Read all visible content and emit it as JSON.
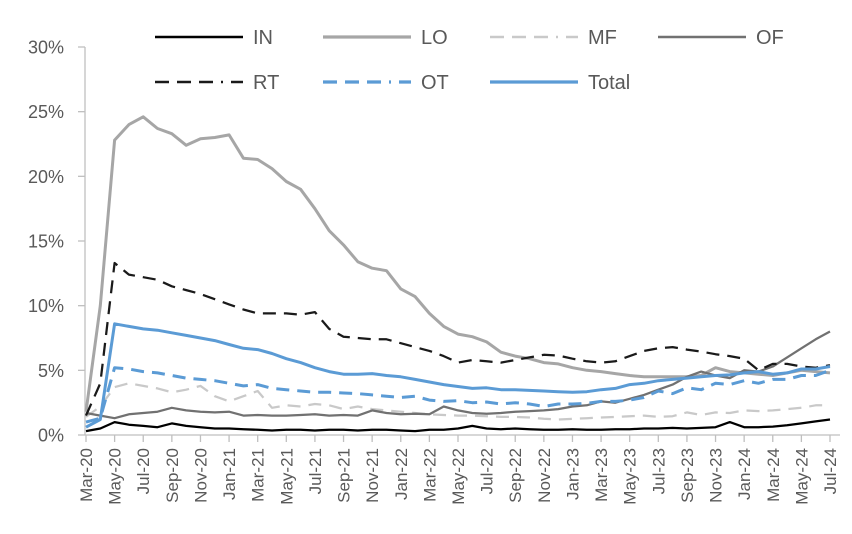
{
  "chart_data": {
    "type": "line",
    "title": "",
    "xlabel": "",
    "ylabel": "",
    "ylim": [
      0,
      30
    ],
    "ytick_step": 5,
    "ytick_labels": [
      "0%",
      "5%",
      "10%",
      "15%",
      "20%",
      "25%",
      "30%"
    ],
    "xtick_every": 2,
    "xtick_labels": [
      "Mar-20",
      "May-20",
      "Jul-20",
      "Sep-20",
      "Nov-20",
      "Jan-21",
      "Mar-21",
      "May-21",
      "Jul-21",
      "Sep-21",
      "Nov-21",
      "Jan-22",
      "Mar-22",
      "May-22",
      "Jul-22",
      "Sep-22",
      "Nov-22",
      "Jan-23",
      "Mar-23",
      "May-23",
      "Jul-23",
      "Sep-23",
      "Nov-23",
      "Jan-24",
      "Mar-24",
      "May-24",
      "Jul-24"
    ],
    "grid": false,
    "legend_position": "top",
    "legend_rows": [
      [
        "IN",
        "LO",
        "MF",
        "OF"
      ],
      [
        "RT",
        "OT",
        "Total"
      ]
    ],
    "axis_color": "#bfbfbf",
    "label_color": "#595959",
    "categories": [
      "Mar-20",
      "Apr-20",
      "May-20",
      "Jun-20",
      "Jul-20",
      "Aug-20",
      "Sep-20",
      "Oct-20",
      "Nov-20",
      "Dec-20",
      "Jan-21",
      "Feb-21",
      "Mar-21",
      "Apr-21",
      "May-21",
      "Jun-21",
      "Jul-21",
      "Aug-21",
      "Sep-21",
      "Oct-21",
      "Nov-21",
      "Dec-21",
      "Jan-22",
      "Feb-22",
      "Mar-22",
      "Apr-22",
      "May-22",
      "Jun-22",
      "Jul-22",
      "Aug-22",
      "Sep-22",
      "Oct-22",
      "Nov-22",
      "Dec-22",
      "Jan-23",
      "Feb-23",
      "Mar-23",
      "Apr-23",
      "May-23",
      "Jun-23",
      "Jul-23",
      "Aug-23",
      "Sep-23",
      "Oct-23",
      "Nov-23",
      "Dec-23",
      "Jan-24",
      "Feb-24",
      "Mar-24",
      "Apr-24",
      "May-24",
      "Jun-24",
      "Jul-24"
    ],
    "series": [
      {
        "name": "IN",
        "color": "#000000",
        "dash": false,
        "width": 2.25,
        "values": [
          0.3,
          0.5,
          1.0,
          0.8,
          0.7,
          0.6,
          0.9,
          0.7,
          0.6,
          0.5,
          0.5,
          0.45,
          0.4,
          0.35,
          0.4,
          0.4,
          0.35,
          0.4,
          0.4,
          0.35,
          0.4,
          0.4,
          0.35,
          0.3,
          0.4,
          0.4,
          0.5,
          0.7,
          0.5,
          0.45,
          0.5,
          0.45,
          0.4,
          0.4,
          0.45,
          0.4,
          0.4,
          0.45,
          0.45,
          0.5,
          0.5,
          0.55,
          0.5,
          0.55,
          0.6,
          1.0,
          0.6,
          0.6,
          0.65,
          0.75,
          0.9,
          1.05,
          1.2
        ]
      },
      {
        "name": "LO",
        "color": "#a6a6a6",
        "dash": false,
        "width": 3,
        "values": [
          1.8,
          10.0,
          22.8,
          24.0,
          24.6,
          23.7,
          23.3,
          22.4,
          22.9,
          23.0,
          23.2,
          21.4,
          21.3,
          20.6,
          19.6,
          19.0,
          17.5,
          15.8,
          14.7,
          13.4,
          12.9,
          12.7,
          11.3,
          10.7,
          9.4,
          8.4,
          7.8,
          7.6,
          7.2,
          6.4,
          6.1,
          5.9,
          5.6,
          5.5,
          5.2,
          5.0,
          4.9,
          4.75,
          4.6,
          4.5,
          4.5,
          4.5,
          4.5,
          4.6,
          5.2,
          4.9,
          4.8,
          4.7,
          4.6,
          4.8,
          5.0,
          4.9,
          4.8
        ]
      },
      {
        "name": "MF",
        "color": "#c9c9c9",
        "dash": true,
        "width": 2.25,
        "values": [
          1.4,
          2.2,
          3.7,
          4.0,
          3.8,
          3.6,
          3.3,
          3.5,
          3.8,
          3.0,
          2.6,
          3.0,
          3.4,
          2.1,
          2.3,
          2.2,
          2.4,
          2.3,
          2.0,
          2.2,
          2.0,
          1.9,
          1.8,
          1.7,
          1.6,
          1.55,
          1.5,
          1.5,
          1.45,
          1.4,
          1.4,
          1.35,
          1.25,
          1.2,
          1.25,
          1.3,
          1.35,
          1.4,
          1.45,
          1.5,
          1.4,
          1.45,
          1.75,
          1.55,
          1.75,
          1.7,
          1.9,
          1.85,
          1.9,
          2.0,
          2.1,
          2.3,
          2.3
        ]
      },
      {
        "name": "OF",
        "color": "#717171",
        "dash": false,
        "width": 2.25,
        "values": [
          1.7,
          1.5,
          1.3,
          1.6,
          1.7,
          1.8,
          2.1,
          1.9,
          1.8,
          1.75,
          1.8,
          1.5,
          1.55,
          1.5,
          1.5,
          1.55,
          1.6,
          1.5,
          1.55,
          1.5,
          1.9,
          1.7,
          1.6,
          1.65,
          1.6,
          2.2,
          1.9,
          1.7,
          1.65,
          1.7,
          1.8,
          1.85,
          1.9,
          2.0,
          2.2,
          2.3,
          2.6,
          2.5,
          2.8,
          3.1,
          3.5,
          3.9,
          4.5,
          4.9,
          4.6,
          4.4,
          5.0,
          4.9,
          5.3,
          6.0,
          6.7,
          7.4,
          8.0
        ]
      },
      {
        "name": "RT",
        "color": "#1a1a1a",
        "dash": true,
        "width": 2.25,
        "values": [
          1.5,
          4.0,
          13.3,
          12.4,
          12.2,
          12.0,
          11.5,
          11.2,
          10.9,
          10.5,
          10.1,
          9.7,
          9.4,
          9.4,
          9.4,
          9.3,
          9.5,
          8.2,
          7.6,
          7.5,
          7.4,
          7.4,
          7.1,
          6.8,
          6.5,
          6.1,
          5.6,
          5.8,
          5.7,
          5.6,
          5.8,
          6.0,
          6.2,
          6.15,
          5.9,
          5.7,
          5.6,
          5.7,
          6.1,
          6.5,
          6.7,
          6.8,
          6.6,
          6.45,
          6.25,
          6.1,
          5.9,
          5.0,
          5.5,
          5.5,
          5.3,
          5.2,
          5.4
        ]
      },
      {
        "name": "OT",
        "color": "#5b9bd5",
        "dash": true,
        "width": 3,
        "values": [
          1.0,
          1.3,
          5.2,
          5.1,
          4.9,
          4.8,
          4.6,
          4.4,
          4.3,
          4.2,
          4.0,
          3.8,
          3.9,
          3.6,
          3.5,
          3.4,
          3.3,
          3.3,
          3.25,
          3.2,
          3.1,
          3.0,
          2.9,
          3.0,
          2.7,
          2.6,
          2.65,
          2.5,
          2.55,
          2.4,
          2.5,
          2.4,
          2.2,
          2.4,
          2.4,
          2.45,
          2.6,
          2.6,
          2.7,
          2.9,
          3.4,
          3.2,
          3.65,
          3.5,
          4.0,
          3.9,
          4.2,
          4.0,
          4.3,
          4.3,
          4.6,
          4.6,
          5.0
        ]
      },
      {
        "name": "Total",
        "color": "#5b9bd5",
        "dash": false,
        "width": 3,
        "values": [
          0.6,
          1.2,
          8.6,
          8.4,
          8.2,
          8.1,
          7.9,
          7.7,
          7.5,
          7.3,
          7.0,
          6.7,
          6.6,
          6.3,
          5.9,
          5.6,
          5.2,
          4.9,
          4.7,
          4.7,
          4.75,
          4.6,
          4.5,
          4.3,
          4.1,
          3.9,
          3.75,
          3.6,
          3.65,
          3.5,
          3.5,
          3.45,
          3.4,
          3.35,
          3.3,
          3.35,
          3.5,
          3.6,
          3.9,
          4.0,
          4.2,
          4.3,
          4.4,
          4.5,
          4.6,
          4.65,
          4.8,
          4.9,
          4.7,
          4.8,
          5.1,
          5.1,
          5.3
        ]
      }
    ]
  }
}
